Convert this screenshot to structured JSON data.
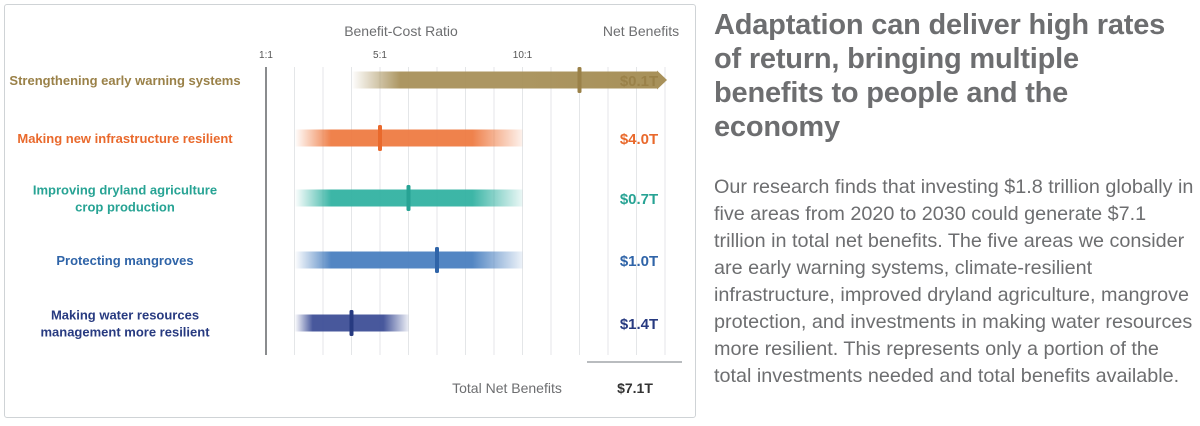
{
  "chart_data": {
    "type": "range-bar",
    "axis_title": "Benefit-Cost Ratio",
    "ticks": [
      {
        "value": 1,
        "label": "1:1"
      },
      {
        "value": 5,
        "label": "5:1"
      },
      {
        "value": 10,
        "label": "10:1"
      }
    ],
    "xlim": [
      1,
      15
    ],
    "net_benefits_header": "Net Benefits",
    "series": [
      {
        "name": "Strengthening early warning systems",
        "label_lines": [
          "Strengthening early warning systems"
        ],
        "low": 4,
        "high": 15,
        "midpoint": 12,
        "extends_beyond": true,
        "net_benefits": "$0.1T",
        "color": "#a8915a",
        "label_color": "#9a8148",
        "value_color": "#9a8148"
      },
      {
        "name": "Making new infrastructure resilient",
        "label_lines": [
          "Making new infrastructure resilient"
        ],
        "low": 2,
        "high": 10,
        "midpoint": 5,
        "extends_beyond": false,
        "net_benefits": "$4.0T",
        "color": "#ee7b43",
        "label_color": "#e9692c",
        "value_color": "#e9692c"
      },
      {
        "name": "Improving dryland agriculture crop production",
        "label_lines": [
          "Improving dryland agriculture",
          "crop production"
        ],
        "low": 2,
        "high": 10,
        "midpoint": 6,
        "extends_beyond": false,
        "net_benefits": "$0.7T",
        "color": "#33b2a2",
        "label_color": "#27a394",
        "value_color": "#27a394"
      },
      {
        "name": "Protecting mangroves",
        "label_lines": [
          "Protecting mangroves"
        ],
        "low": 2,
        "high": 10,
        "midpoint": 7,
        "extends_beyond": false,
        "net_benefits": "$1.0T",
        "color": "#4a80c0",
        "label_color": "#2f64a8",
        "value_color": "#2f64a8"
      },
      {
        "name": "Making water resources management more resilient",
        "label_lines": [
          "Making water resources",
          "management more resilient"
        ],
        "low": 2,
        "high": 6,
        "midpoint": 4,
        "extends_beyond": false,
        "net_benefits": "$1.4T",
        "color": "#3e4f97",
        "label_color": "#273a80",
        "value_color": "#273a80"
      }
    ],
    "total_label": "Total Net Benefits",
    "total_value": "$7.1T"
  },
  "article": {
    "headline": "Adaptation can deliver high rates of return, bringing multiple benefits to people and the economy",
    "body": "Our research finds that investing $1.8 trillion globally in five areas from 2020 to 2030 could generate $7.1 trillion in total net benefits. The five areas we consider are early warning systems, climate-resilient infrastructure, improved dryland agriculture, mangrove protection, and investments in making water resources more resilient. This represents only a portion of the total investments needed and total benefits available."
  }
}
